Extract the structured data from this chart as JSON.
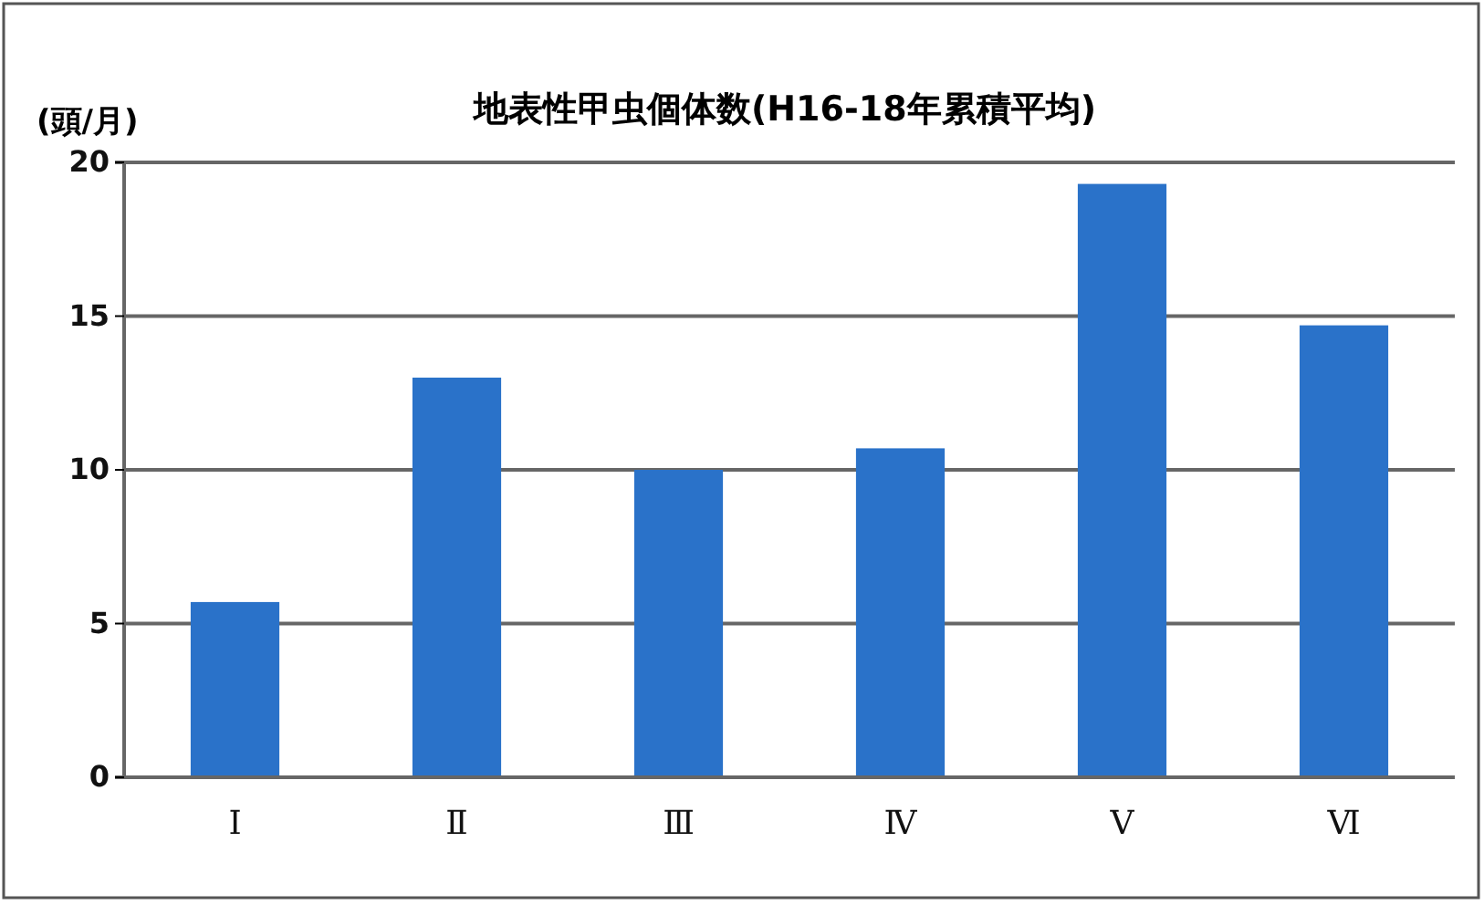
{
  "chart_data": {
    "type": "bar",
    "title": "地表性甲虫個体数(H16-18年累積平均)",
    "ylabel": "(頭/月)",
    "categories": [
      "Ⅰ",
      "Ⅱ",
      "Ⅲ",
      "Ⅳ",
      "Ⅴ",
      "Ⅵ"
    ],
    "values": [
      5.7,
      13.0,
      10.0,
      10.7,
      19.3,
      14.7
    ],
    "color": "#2a72c9",
    "ylim": [
      0,
      20
    ],
    "yticks": [
      0,
      5,
      10,
      15,
      20
    ],
    "grid": "y"
  }
}
